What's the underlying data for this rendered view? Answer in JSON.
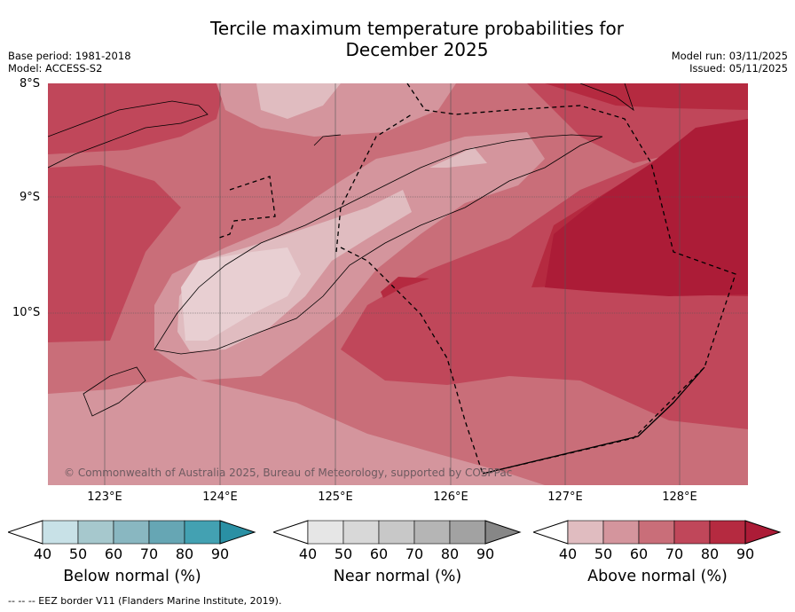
{
  "title": {
    "line1": "Tercile maximum temperature probabilities for",
    "line2": "December 2025"
  },
  "meta": {
    "base_period": "Base period: 1981-2018",
    "model": "Model: ACCESS-S2",
    "model_run": "Model run: 03/11/2025",
    "issued": "Issued: 05/11/2025"
  },
  "map": {
    "lat_labels": [
      "8°S",
      "9°S",
      "10°S"
    ],
    "lon_labels": [
      "123°E",
      "124°E",
      "125°E",
      "126°E",
      "127°E",
      "128°E"
    ],
    "copyright": "© Commonwealth of Australia 2025, Bureau of Meteorology, supported by COSPPac",
    "colors": {
      "above_60": "#c96e79",
      "above_50": "#d4959d",
      "above_40": "#e0bcc0",
      "above_70": "#c0475a",
      "above_80": "#b52a40",
      "above_90": "#ac1c37"
    }
  },
  "colorbars": [
    {
      "title": "Below normal (%)",
      "ticks": [
        "40",
        "50",
        "60",
        "70",
        "80",
        "90"
      ],
      "colors": [
        "#ffffff",
        "#c8e1e7",
        "#a6c8cd",
        "#89b7c1",
        "#66a6b4",
        "#43a1b2",
        "#2a90a4"
      ]
    },
    {
      "title": "Near normal (%)",
      "ticks": [
        "40",
        "50",
        "60",
        "70",
        "80",
        "90"
      ],
      "colors": [
        "#ffffff",
        "#e6e6e6",
        "#d8d8d8",
        "#c8c8c8",
        "#b5b5b5",
        "#a2a2a2",
        "#878787"
      ]
    },
    {
      "title": "Above normal (%)",
      "ticks": [
        "40",
        "50",
        "60",
        "70",
        "80",
        "90"
      ],
      "colors": [
        "#ffffff",
        "#e0bcc0",
        "#d4959d",
        "#c96e79",
        "#c0475a",
        "#b52a40",
        "#ac1c37"
      ]
    }
  ],
  "footer": "--  --  -- EEZ border V11 (Flanders Marine Institute, 2019)."
}
